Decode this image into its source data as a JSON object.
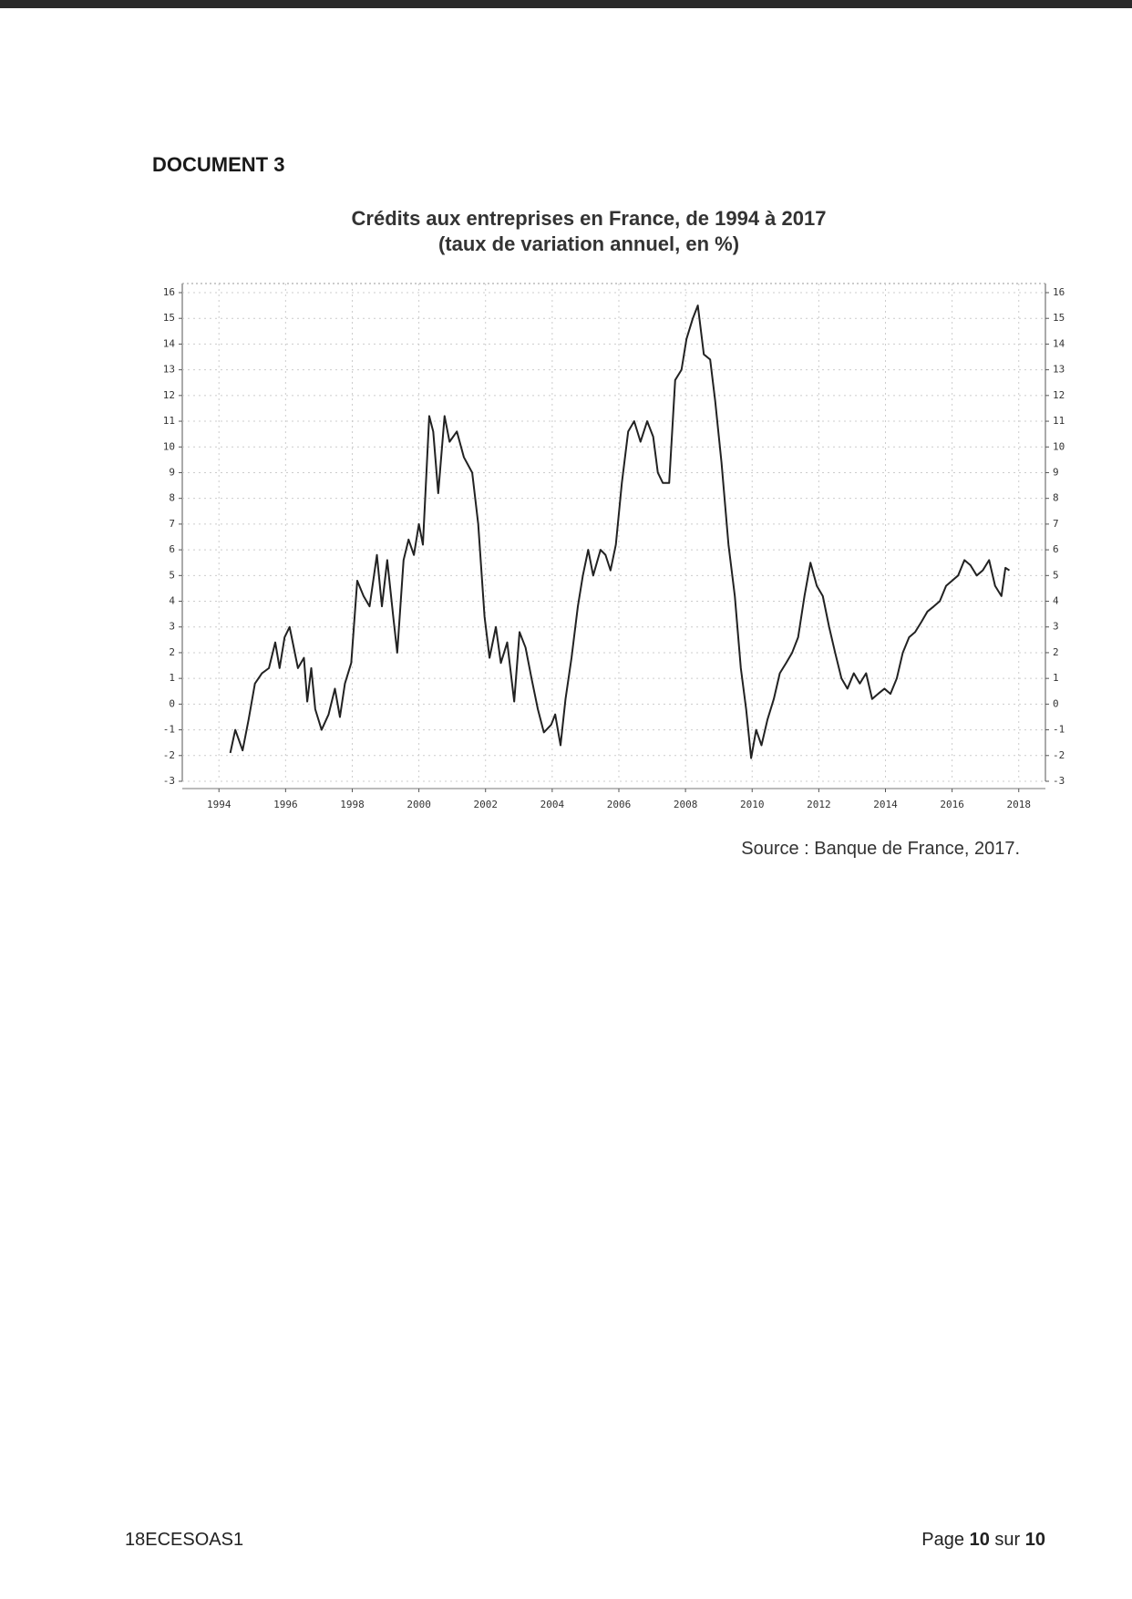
{
  "header": {
    "document_label": "DOCUMENT 3"
  },
  "chart_data": {
    "type": "line",
    "title": "Crédits aux entreprises en France, de 1994 à 2017",
    "subtitle": "(taux de variation annuel, en %)",
    "color": "#222222",
    "grid": true,
    "xlim": [
      1992.9,
      2018.8
    ],
    "xticks": [
      1994,
      1996,
      1998,
      2000,
      2002,
      2004,
      2006,
      2008,
      2010,
      2012,
      2014,
      2016,
      2018
    ],
    "ylim": [
      -3,
      16
    ],
    "yticks": [
      -3,
      -2,
      -1,
      0,
      1,
      2,
      3,
      4,
      5,
      6,
      7,
      8,
      9,
      10,
      11,
      12,
      13,
      14,
      15,
      16
    ],
    "y2lim": [
      -3,
      16
    ],
    "y2ticks": [
      -3,
      -2,
      -1,
      0,
      1,
      2,
      3,
      4,
      5,
      6,
      7,
      8,
      9,
      10,
      11,
      12,
      13,
      14,
      15,
      16
    ],
    "x": [
      1994.34,
      1994.49,
      1994.71,
      1994.89,
      1995.08,
      1995.29,
      1995.5,
      1995.69,
      1995.82,
      1995.97,
      1996.12,
      1996.37,
      1996.55,
      1996.65,
      1996.77,
      1996.89,
      1997.08,
      1997.29,
      1997.48,
      1997.63,
      1997.78,
      1997.97,
      1998.15,
      1998.34,
      1998.52,
      1998.74,
      1998.89,
      1999.05,
      1999.23,
      1999.35,
      1999.54,
      1999.69,
      1999.85,
      2000.0,
      2000.12,
      2000.31,
      2000.43,
      2000.58,
      2000.77,
      2000.92,
      2001.14,
      2001.35,
      2001.6,
      2001.78,
      2001.97,
      2002.12,
      2002.31,
      2002.46,
      2002.65,
      2002.86,
      2003.02,
      2003.2,
      2003.38,
      2003.57,
      2003.75,
      2003.97,
      2004.09,
      2004.25,
      2004.4,
      2004.58,
      2004.77,
      2004.92,
      2005.08,
      2005.23,
      2005.45,
      2005.6,
      2005.75,
      2005.91,
      2006.09,
      2006.28,
      2006.46,
      2006.65,
      2006.85,
      2007.03,
      2007.17,
      2007.32,
      2007.51,
      2007.69,
      2007.88,
      2008.03,
      2008.22,
      2008.37,
      2008.55,
      2008.74,
      2008.89,
      2009.08,
      2009.29,
      2009.48,
      2009.66,
      2009.82,
      2009.97,
      2010.12,
      2010.28,
      2010.46,
      2010.65,
      2010.83,
      2011.02,
      2011.2,
      2011.38,
      2011.57,
      2011.75,
      2011.94,
      2012.12,
      2012.31,
      2012.49,
      2012.68,
      2012.86,
      2013.05,
      2013.23,
      2013.42,
      2013.6,
      2013.78,
      2013.97,
      2014.15,
      2014.34,
      2014.52,
      2014.71,
      2014.89,
      2015.08,
      2015.26,
      2015.45,
      2015.63,
      2015.82,
      2016.0,
      2016.18,
      2016.37,
      2016.55,
      2016.74,
      2016.92,
      2017.11,
      2017.29,
      2017.48,
      2017.6,
      2017.72
    ],
    "values": [
      -1.9,
      -1.0,
      -1.8,
      -0.6,
      0.8,
      1.2,
      1.4,
      2.4,
      1.4,
      2.6,
      3.0,
      1.4,
      1.8,
      0.1,
      1.4,
      -0.2,
      -1.0,
      -0.4,
      0.6,
      -0.5,
      0.8,
      1.6,
      4.8,
      4.2,
      3.8,
      5.8,
      3.8,
      5.6,
      3.4,
      2.0,
      5.6,
      6.4,
      5.8,
      7.0,
      6.2,
      11.2,
      10.6,
      8.2,
      11.2,
      10.2,
      10.6,
      9.6,
      9.0,
      7.0,
      3.4,
      1.8,
      3.0,
      1.6,
      2.4,
      0.1,
      2.8,
      2.2,
      1.0,
      -0.2,
      -1.1,
      -0.8,
      -0.4,
      -1.6,
      0.2,
      1.8,
      3.8,
      5.0,
      6.0,
      5.0,
      6.0,
      5.8,
      5.2,
      6.2,
      8.6,
      10.6,
      11.0,
      10.2,
      11.0,
      10.4,
      9.0,
      8.6,
      8.6,
      12.6,
      13.0,
      14.2,
      15.0,
      15.5,
      13.6,
      13.4,
      11.8,
      9.4,
      6.2,
      4.2,
      1.4,
      -0.2,
      -2.1,
      -1.0,
      -1.6,
      -0.6,
      0.2,
      1.2,
      1.6,
      2.0,
      2.6,
      4.2,
      5.5,
      4.6,
      4.2,
      3.0,
      2.0,
      1.0,
      0.6,
      1.2,
      0.8,
      1.2,
      0.2,
      0.4,
      0.6,
      0.4,
      1.0,
      2.0,
      2.6,
      2.8,
      3.2,
      3.6,
      3.8,
      4.0,
      4.6,
      4.8,
      5.0,
      5.6,
      5.4,
      5.0,
      5.2,
      5.6,
      4.6,
      4.2,
      5.3,
      5.2
    ]
  },
  "source": "Source : Banque de France, 2017.",
  "footer": {
    "code": "18ECESOAS1",
    "page_parts": [
      "Page",
      "10",
      "sur",
      "10"
    ]
  }
}
